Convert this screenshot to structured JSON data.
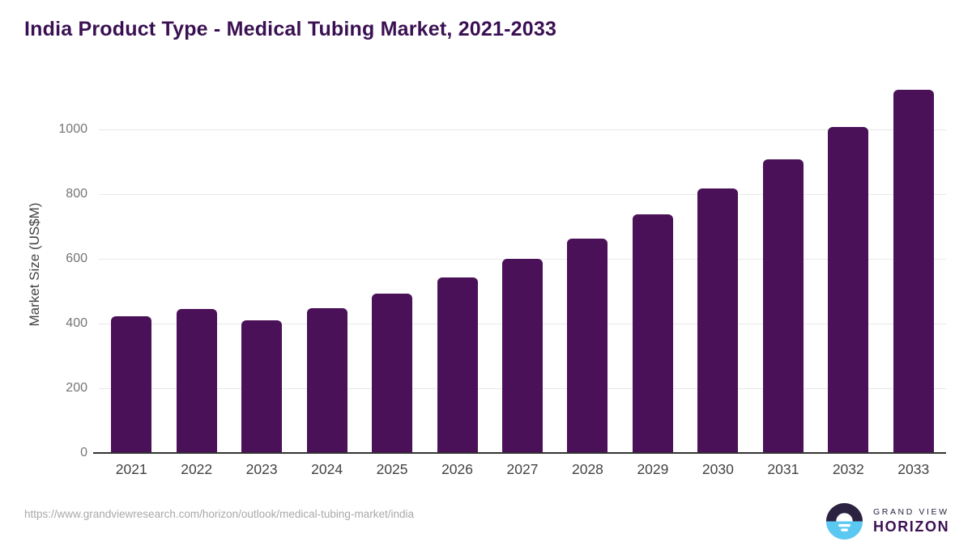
{
  "title": "India Product Type - Medical Tubing Market, 2021-2033",
  "source_url": "https://www.grandviewresearch.com/horizon/outlook/medical-tubing-market/india",
  "logo": {
    "line1": "GRAND VIEW",
    "line2": "HORIZON"
  },
  "colors": {
    "bar": "#4A1159",
    "title": "#3A1052",
    "gridline": "#e8e8e8",
    "axis_line": "#333333",
    "y_tick_text": "#757575",
    "x_tick_text": "#424242",
    "source_text": "#a8a8a8",
    "logo_dark": "#2B2140",
    "logo_blue": "#5BC8F2",
    "logo_horizon_text": "#3D1152"
  },
  "chart_data": {
    "type": "bar",
    "title": "India Product Type - Medical Tubing Market, 2021-2033",
    "categories": [
      "2021",
      "2022",
      "2023",
      "2024",
      "2025",
      "2026",
      "2027",
      "2028",
      "2029",
      "2030",
      "2031",
      "2032",
      "2033"
    ],
    "values": [
      423,
      446,
      409,
      448,
      493,
      542,
      601,
      663,
      737,
      817,
      908,
      1007,
      1123
    ],
    "xlabel": "",
    "ylabel": "Market Size (US$M)",
    "ylim": [
      0,
      1150
    ],
    "yticks": [
      0,
      200,
      400,
      600,
      800,
      1000
    ],
    "grid": true,
    "legend": false
  }
}
